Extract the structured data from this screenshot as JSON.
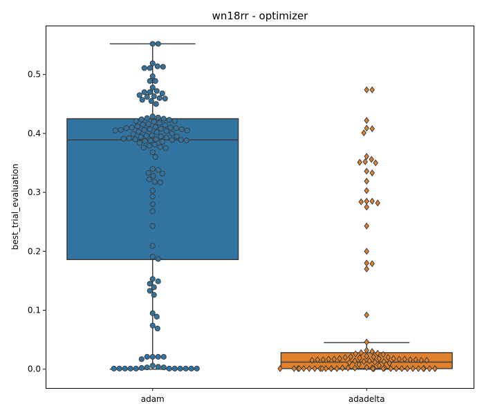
{
  "chart_data": {
    "type": "boxplot-swarm",
    "title": "wn18rr - optimizer",
    "xlabel": "",
    "ylabel": "best_trial_evaluation",
    "ylim": [
      -0.032,
      0.583
    ],
    "yticks": [
      0.0,
      0.1,
      0.2,
      0.3,
      0.4,
      0.5
    ],
    "ytick_labels": [
      "0.0",
      "0.1",
      "0.2",
      "0.3",
      "0.4",
      "0.5"
    ],
    "categories": [
      "adam",
      "adadelta"
    ],
    "colors": {
      "adam": "#3274a1",
      "adadelta": "#e1812c",
      "whisker": "#3d3d3d"
    },
    "series": [
      {
        "name": "adam",
        "box": {
          "whisker_low": 0.0,
          "q1": 0.186,
          "median": 0.389,
          "q3": 0.425,
          "whisker_high": 0.552
        },
        "marker": "circle",
        "points": [
          0.552,
          0.552,
          0.519,
          0.514,
          0.511,
          0.511,
          0.513,
          0.497,
          0.489,
          0.489,
          0.478,
          0.472,
          0.47,
          0.47,
          0.468,
          0.465,
          0.463,
          0.462,
          0.46,
          0.459,
          0.457,
          0.455,
          0.45,
          0.429,
          0.427,
          0.426,
          0.425,
          0.424,
          0.423,
          0.421,
          0.421,
          0.42,
          0.418,
          0.416,
          0.415,
          0.414,
          0.412,
          0.411,
          0.41,
          0.41,
          0.409,
          0.409,
          0.408,
          0.407,
          0.407,
          0.406,
          0.406,
          0.405,
          0.405,
          0.404,
          0.403,
          0.402,
          0.4,
          0.399,
          0.397,
          0.396,
          0.395,
          0.395,
          0.394,
          0.393,
          0.392,
          0.391,
          0.39,
          0.39,
          0.389,
          0.389,
          0.388,
          0.388,
          0.387,
          0.386,
          0.384,
          0.381,
          0.379,
          0.377,
          0.376,
          0.375,
          0.368,
          0.36,
          0.34,
          0.338,
          0.333,
          0.332,
          0.328,
          0.322,
          0.318,
          0.317,
          0.303,
          0.293,
          0.28,
          0.268,
          0.243,
          0.209,
          0.191,
          0.187,
          0.153,
          0.149,
          0.145,
          0.139,
          0.133,
          0.126,
          0.095,
          0.089,
          0.074,
          0.069,
          0.021,
          0.021,
          0.021,
          0.021,
          0.017,
          0.006,
          0.004,
          0.003,
          0.003,
          0.002,
          0.001,
          0.001,
          0.001,
          0.001,
          0.001,
          0.001,
          0.001,
          0.001,
          0.001,
          0.001,
          0.001
        ]
      },
      {
        "name": "adadelta",
        "box": {
          "whisker_low": 0.0,
          "q1": 0.001,
          "median": 0.012,
          "q3": 0.028,
          "whisker_high": 0.045
        },
        "marker": "diamond",
        "points": [
          0.474,
          0.474,
          0.422,
          0.409,
          0.408,
          0.401,
          0.361,
          0.356,
          0.352,
          0.351,
          0.35,
          0.336,
          0.333,
          0.319,
          0.303,
          0.285,
          0.285,
          0.284,
          0.282,
          0.275,
          0.243,
          0.2,
          0.18,
          0.179,
          0.17,
          0.092,
          0.046,
          0.032,
          0.03,
          0.028,
          0.027,
          0.026,
          0.025,
          0.022,
          0.021,
          0.021,
          0.02,
          0.02,
          0.019,
          0.018,
          0.018,
          0.018,
          0.017,
          0.017,
          0.017,
          0.017,
          0.016,
          0.016,
          0.016,
          0.016,
          0.015,
          0.015,
          0.015,
          0.014,
          0.014,
          0.013,
          0.013,
          0.012,
          0.011,
          0.01,
          0.008,
          0.006,
          0.003,
          0.002,
          0.002,
          0.002,
          0.002,
          0.002,
          0.001,
          0.001,
          0.001,
          0.001,
          0.001,
          0.001,
          0.001,
          0.001,
          0.001,
          0.001,
          0.001,
          0.001,
          0.001,
          0.001,
          0.001,
          0.001,
          0.001,
          0.001,
          0.001,
          0.001,
          0.001,
          0.001,
          0.001,
          0.001,
          0.001,
          0.001,
          0.001,
          0.001
        ]
      }
    ]
  }
}
